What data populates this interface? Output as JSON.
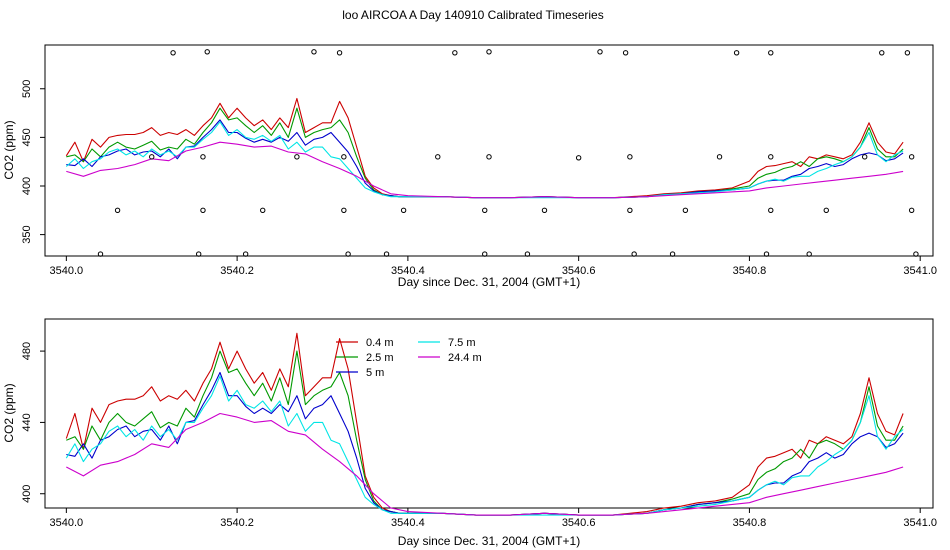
{
  "title": "loo AIRCOA A  Day 140910  Calibrated Timeseries",
  "chart_data": [
    {
      "type": "line",
      "xlabel": "Day since Dec. 31, 2004 (GMT+1)",
      "ylabel": "CO2 (ppm)",
      "xlim": [
        3539.975,
        3541.015
      ],
      "ylim": [
        328,
        545
      ],
      "xticks": [
        "3540.0",
        "3540.2",
        "3540.4",
        "3540.6",
        "3540.8",
        "3541.0"
      ],
      "yticks": [
        "350",
        "400",
        "450",
        "500"
      ],
      "points": [
        {
          "x": 3540.04,
          "y": 330
        },
        {
          "x": 3540.06,
          "y": 375
        },
        {
          "x": 3540.1,
          "y": 430
        },
        {
          "x": 3540.125,
          "y": 537
        },
        {
          "x": 3540.155,
          "y": 330
        },
        {
          "x": 3540.16,
          "y": 375
        },
        {
          "x": 3540.16,
          "y": 430
        },
        {
          "x": 3540.165,
          "y": 538
        },
        {
          "x": 3540.21,
          "y": 330
        },
        {
          "x": 3540.23,
          "y": 375
        },
        {
          "x": 3540.27,
          "y": 430
        },
        {
          "x": 3540.29,
          "y": 538
        },
        {
          "x": 3540.32,
          "y": 537
        },
        {
          "x": 3540.325,
          "y": 430
        },
        {
          "x": 3540.325,
          "y": 375
        },
        {
          "x": 3540.33,
          "y": 330
        },
        {
          "x": 3540.375,
          "y": 330
        },
        {
          "x": 3540.395,
          "y": 375
        },
        {
          "x": 3540.435,
          "y": 430
        },
        {
          "x": 3540.455,
          "y": 537
        },
        {
          "x": 3540.49,
          "y": 330
        },
        {
          "x": 3540.49,
          "y": 375
        },
        {
          "x": 3540.495,
          "y": 430
        },
        {
          "x": 3540.495,
          "y": 538
        },
        {
          "x": 3540.54,
          "y": 330
        },
        {
          "x": 3540.56,
          "y": 375
        },
        {
          "x": 3540.6,
          "y": 429
        },
        {
          "x": 3540.625,
          "y": 538
        },
        {
          "x": 3540.655,
          "y": 537
        },
        {
          "x": 3540.66,
          "y": 430
        },
        {
          "x": 3540.66,
          "y": 375
        },
        {
          "x": 3540.665,
          "y": 330
        },
        {
          "x": 3540.71,
          "y": 330
        },
        {
          "x": 3540.725,
          "y": 375
        },
        {
          "x": 3540.765,
          "y": 430
        },
        {
          "x": 3540.785,
          "y": 537
        },
        {
          "x": 3540.82,
          "y": 330
        },
        {
          "x": 3540.825,
          "y": 375
        },
        {
          "x": 3540.825,
          "y": 430
        },
        {
          "x": 3540.825,
          "y": 537
        },
        {
          "x": 3540.87,
          "y": 330
        },
        {
          "x": 3540.89,
          "y": 375
        },
        {
          "x": 3540.935,
          "y": 430
        },
        {
          "x": 3540.955,
          "y": 537
        },
        {
          "x": 3540.985,
          "y": 537
        },
        {
          "x": 3540.99,
          "y": 430
        },
        {
          "x": 3540.99,
          "y": 375
        },
        {
          "x": 3540.995,
          "y": 330
        }
      ]
    },
    {
      "type": "line",
      "xlabel": "Day since Dec. 31, 2004 (GMT+1)",
      "ylabel": "CO2 (ppm)",
      "xlim": [
        3539.975,
        3541.015
      ],
      "ylim": [
        392,
        498
      ],
      "xticks": [
        "3540.0",
        "3540.2",
        "3540.4",
        "3540.6",
        "3540.8",
        "3541.0"
      ],
      "yticks": [
        "400",
        "440",
        "480"
      ],
      "legend": "top-center"
    }
  ],
  "legend": [
    {
      "label": "0.4 m",
      "color": "#cc0000"
    },
    {
      "label": "2.5 m",
      "color": "#009900"
    },
    {
      "label": "5 m",
      "color": "#0000cc"
    },
    {
      "label": "7.5 m",
      "color": "#00e5e5"
    },
    {
      "label": "24.4 m",
      "color": "#cc00cc"
    }
  ],
  "series": [
    {
      "color": "#cc0000",
      "x": [
        3540.0,
        3540.01,
        3540.02,
        3540.03,
        3540.04,
        3540.05,
        3540.06,
        3540.07,
        3540.08,
        3540.09,
        3540.1,
        3540.11,
        3540.12,
        3540.13,
        3540.14,
        3540.15,
        3540.16,
        3540.17,
        3540.18,
        3540.19,
        3540.2,
        3540.21,
        3540.22,
        3540.23,
        3540.24,
        3540.25,
        3540.26,
        3540.27,
        3540.28,
        3540.29,
        3540.3,
        3540.31,
        3540.32,
        3540.33,
        3540.34,
        3540.35,
        3540.36,
        3540.37,
        3540.38,
        3540.39,
        3540.4,
        3540.44,
        3540.48,
        3540.52,
        3540.56,
        3540.6,
        3540.64,
        3540.68,
        3540.7,
        3540.72,
        3540.74,
        3540.76,
        3540.78,
        3540.8,
        3540.81,
        3540.82,
        3540.83,
        3540.84,
        3540.85,
        3540.86,
        3540.87,
        3540.88,
        3540.89,
        3540.9,
        3540.91,
        3540.92,
        3540.93,
        3540.94,
        3540.95,
        3540.96,
        3540.97,
        3540.98
      ],
      "y": [
        431,
        445,
        425,
        448,
        440,
        450,
        452,
        453,
        453,
        455,
        460,
        452,
        455,
        453,
        458,
        452,
        462,
        470,
        485,
        470,
        480,
        470,
        462,
        468,
        458,
        470,
        460,
        490,
        455,
        460,
        465,
        465,
        487,
        470,
        440,
        410,
        398,
        392,
        390,
        389,
        389,
        389,
        388,
        388,
        389,
        388,
        388,
        390,
        392,
        393,
        395,
        396,
        398,
        405,
        415,
        420,
        421,
        423,
        425,
        420,
        430,
        428,
        432,
        430,
        428,
        432,
        445,
        465,
        445,
        435,
        433,
        445
      ]
    },
    {
      "color": "#009900",
      "x": [
        3540.0,
        3540.01,
        3540.02,
        3540.03,
        3540.04,
        3540.05,
        3540.06,
        3540.07,
        3540.08,
        3540.09,
        3540.1,
        3540.11,
        3540.12,
        3540.13,
        3540.14,
        3540.15,
        3540.16,
        3540.17,
        3540.18,
        3540.19,
        3540.2,
        3540.21,
        3540.22,
        3540.23,
        3540.24,
        3540.25,
        3540.26,
        3540.27,
        3540.28,
        3540.29,
        3540.3,
        3540.31,
        3540.32,
        3540.33,
        3540.34,
        3540.35,
        3540.36,
        3540.37,
        3540.38,
        3540.39,
        3540.4,
        3540.44,
        3540.48,
        3540.52,
        3540.56,
        3540.6,
        3540.64,
        3540.68,
        3540.7,
        3540.72,
        3540.74,
        3540.76,
        3540.78,
        3540.8,
        3540.81,
        3540.82,
        3540.83,
        3540.84,
        3540.85,
        3540.86,
        3540.87,
        3540.88,
        3540.89,
        3540.9,
        3540.91,
        3540.92,
        3540.93,
        3540.94,
        3540.95,
        3540.96,
        3540.97,
        3540.98
      ],
      "y": [
        430,
        432,
        425,
        438,
        430,
        440,
        445,
        440,
        438,
        442,
        446,
        437,
        440,
        438,
        448,
        443,
        455,
        465,
        480,
        468,
        470,
        462,
        455,
        462,
        452,
        465,
        450,
        480,
        450,
        455,
        458,
        460,
        468,
        455,
        430,
        408,
        396,
        391,
        390,
        389,
        389,
        389,
        388,
        388,
        389,
        388,
        388,
        389,
        391,
        392,
        394,
        395,
        397,
        400,
        408,
        412,
        414,
        418,
        420,
        425,
        420,
        428,
        430,
        428,
        425,
        430,
        440,
        460,
        438,
        430,
        430,
        438
      ]
    },
    {
      "color": "#0000cc",
      "x": [
        3540.0,
        3540.01,
        3540.02,
        3540.03,
        3540.04,
        3540.05,
        3540.06,
        3540.07,
        3540.08,
        3540.09,
        3540.1,
        3540.11,
        3540.12,
        3540.13,
        3540.14,
        3540.15,
        3540.16,
        3540.17,
        3540.18,
        3540.19,
        3540.2,
        3540.21,
        3540.22,
        3540.23,
        3540.24,
        3540.25,
        3540.26,
        3540.27,
        3540.28,
        3540.29,
        3540.3,
        3540.31,
        3540.32,
        3540.33,
        3540.34,
        3540.35,
        3540.36,
        3540.37,
        3540.38,
        3540.39,
        3540.4,
        3540.44,
        3540.48,
        3540.52,
        3540.56,
        3540.6,
        3540.64,
        3540.68,
        3540.7,
        3540.72,
        3540.74,
        3540.76,
        3540.78,
        3540.8,
        3540.81,
        3540.82,
        3540.83,
        3540.84,
        3540.85,
        3540.86,
        3540.87,
        3540.88,
        3540.89,
        3540.9,
        3540.91,
        3540.92,
        3540.93,
        3540.94,
        3540.95,
        3540.96,
        3540.97,
        3540.98
      ],
      "y": [
        422,
        421,
        428,
        420,
        430,
        432,
        436,
        438,
        432,
        435,
        436,
        430,
        438,
        428,
        440,
        441,
        450,
        458,
        468,
        455,
        455,
        449,
        445,
        448,
        445,
        450,
        446,
        455,
        442,
        448,
        450,
        455,
        445,
        435,
        420,
        403,
        395,
        391,
        390,
        389,
        389,
        389,
        388,
        388,
        389,
        388,
        388,
        389,
        391,
        392,
        394,
        395,
        396,
        398,
        402,
        405,
        406,
        406,
        410,
        412,
        418,
        420,
        423,
        420,
        422,
        428,
        432,
        434,
        432,
        426,
        428,
        434
      ]
    },
    {
      "color": "#00e5e5",
      "x": [
        3540.0,
        3540.01,
        3540.02,
        3540.03,
        3540.04,
        3540.05,
        3540.06,
        3540.07,
        3540.08,
        3540.09,
        3540.1,
        3540.11,
        3540.12,
        3540.13,
        3540.14,
        3540.15,
        3540.16,
        3540.17,
        3540.18,
        3540.19,
        3540.2,
        3540.21,
        3540.22,
        3540.23,
        3540.24,
        3540.25,
        3540.26,
        3540.27,
        3540.28,
        3540.29,
        3540.3,
        3540.31,
        3540.32,
        3540.33,
        3540.34,
        3540.35,
        3540.36,
        3540.37,
        3540.38,
        3540.39,
        3540.4,
        3540.44,
        3540.48,
        3540.52,
        3540.56,
        3540.6,
        3540.64,
        3540.68,
        3540.7,
        3540.72,
        3540.74,
        3540.76,
        3540.78,
        3540.8,
        3540.81,
        3540.82,
        3540.83,
        3540.84,
        3540.85,
        3540.86,
        3540.87,
        3540.88,
        3540.89,
        3540.9,
        3540.91,
        3540.92,
        3540.93,
        3540.94,
        3540.95,
        3540.96,
        3540.97,
        3540.98
      ],
      "y": [
        420,
        428,
        418,
        425,
        428,
        435,
        438,
        432,
        436,
        430,
        438,
        432,
        436,
        430,
        440,
        440,
        448,
        455,
        466,
        452,
        458,
        450,
        448,
        452,
        446,
        452,
        438,
        445,
        435,
        440,
        440,
        430,
        428,
        418,
        408,
        398,
        394,
        391,
        389,
        389,
        389,
        389,
        388,
        388,
        388,
        388,
        388,
        389,
        391,
        392,
        393,
        394,
        396,
        398,
        402,
        405,
        407,
        405,
        409,
        410,
        410,
        415,
        418,
        422,
        425,
        430,
        440,
        455,
        432,
        425,
        432,
        436
      ]
    },
    {
      "color": "#cc00cc",
      "x": [
        3540.0,
        3540.02,
        3540.04,
        3540.06,
        3540.08,
        3540.1,
        3540.12,
        3540.14,
        3540.16,
        3540.18,
        3540.2,
        3540.22,
        3540.24,
        3540.26,
        3540.28,
        3540.3,
        3540.32,
        3540.34,
        3540.36,
        3540.38,
        3540.4,
        3540.44,
        3540.48,
        3540.52,
        3540.56,
        3540.6,
        3540.64,
        3540.68,
        3540.72,
        3540.76,
        3540.8,
        3540.82,
        3540.84,
        3540.86,
        3540.88,
        3540.9,
        3540.92,
        3540.94,
        3540.96,
        3540.98
      ],
      "y": [
        415,
        410,
        416,
        418,
        422,
        428,
        426,
        436,
        440,
        445,
        443,
        440,
        441,
        435,
        433,
        425,
        418,
        410,
        400,
        392,
        390,
        389,
        388,
        388,
        389,
        388,
        388,
        389,
        391,
        393,
        395,
        398,
        400,
        402,
        404,
        406,
        408,
        410,
        412,
        415
      ]
    }
  ]
}
